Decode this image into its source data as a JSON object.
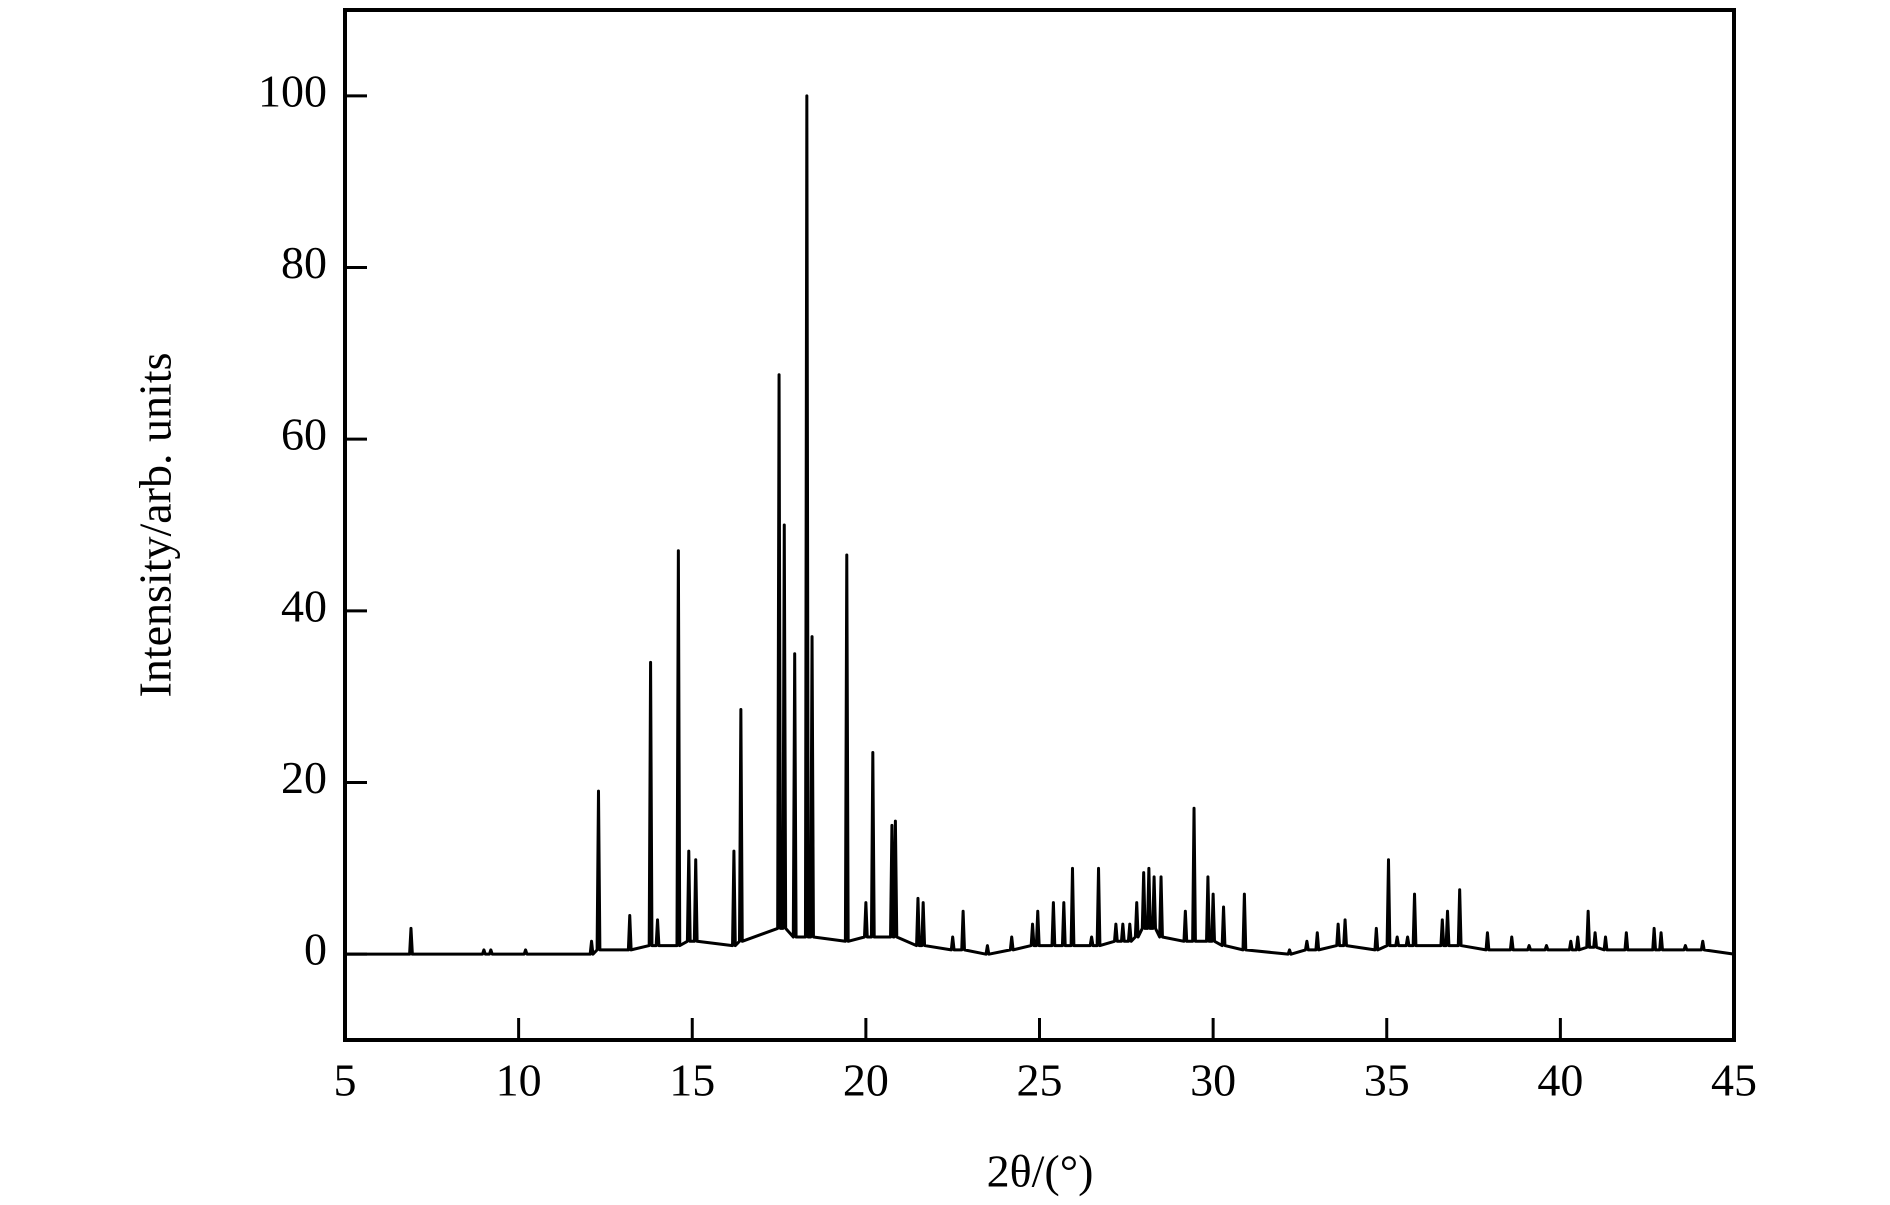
{
  "chart_data": {
    "type": "line",
    "xlabel": "2θ/(°)",
    "ylabel": "Intensity/arb. units",
    "color": "#000000",
    "xlim": [
      5,
      45
    ],
    "xticks": [
      5,
      10,
      15,
      20,
      25,
      30,
      35,
      40,
      45
    ],
    "ylim": [
      -10,
      110
    ],
    "yticks": [
      0,
      20,
      40,
      60,
      80,
      100
    ],
    "x": [
      5,
      6.86,
      6.9,
      6.94,
      8.96,
      9.0,
      9.04,
      9.16,
      9.2,
      9.24,
      10.16,
      10.2,
      10.24,
      12.06,
      12.1,
      12.14,
      12.26,
      12.3,
      12.34,
      13.16,
      13.2,
      13.24,
      13.76,
      13.8,
      13.84,
      13.96,
      14.0,
      14.04,
      14.56,
      14.6,
      14.64,
      14.86,
      14.9,
      14.94,
      15.06,
      15.1,
      15.14,
      16.16,
      16.2,
      16.24,
      16.36,
      16.4,
      16.44,
      17.46,
      17.5,
      17.54,
      17.61,
      17.65,
      17.69,
      17.91,
      17.95,
      17.99,
      18.26,
      18.3,
      18.34,
      18.41,
      18.45,
      18.49,
      19.41,
      19.45,
      19.49,
      19.96,
      20.0,
      20.04,
      20.16,
      20.2,
      20.24,
      20.71,
      20.75,
      20.79,
      20.81,
      20.85,
      20.89,
      21.46,
      21.5,
      21.54,
      21.61,
      21.65,
      21.69,
      22.46,
      22.5,
      22.54,
      22.76,
      22.8,
      22.84,
      23.46,
      23.5,
      23.54,
      24.16,
      24.2,
      24.24,
      24.76,
      24.8,
      24.84,
      24.91,
      24.95,
      24.99,
      25.36,
      25.4,
      25.44,
      25.66,
      25.7,
      25.74,
      25.91,
      25.95,
      25.99,
      26.46,
      26.5,
      26.54,
      26.66,
      26.7,
      26.74,
      27.16,
      27.2,
      27.24,
      27.36,
      27.4,
      27.44,
      27.56,
      27.6,
      27.64,
      27.76,
      27.8,
      27.84,
      27.96,
      28.0,
      28.04,
      28.11,
      28.15,
      28.19,
      28.26,
      28.3,
      28.34,
      28.46,
      28.5,
      28.54,
      29.16,
      29.2,
      29.24,
      29.41,
      29.45,
      29.49,
      29.81,
      29.85,
      29.89,
      29.96,
      30.0,
      30.04,
      30.26,
      30.3,
      30.34,
      30.86,
      30.9,
      30.94,
      32.16,
      32.2,
      32.24,
      32.66,
      32.7,
      32.74,
      32.96,
      33.0,
      33.04,
      33.56,
      33.6,
      33.64,
      33.76,
      33.8,
      33.84,
      34.66,
      34.7,
      34.74,
      35.01,
      35.05,
      35.09,
      35.26,
      35.3,
      35.34,
      35.56,
      35.6,
      35.64,
      35.76,
      35.8,
      35.84,
      36.56,
      36.6,
      36.64,
      36.71,
      36.75,
      36.79,
      37.06,
      37.1,
      37.14,
      37.86,
      37.9,
      37.94,
      38.56,
      38.6,
      38.64,
      39.06,
      39.1,
      39.14,
      39.56,
      39.6,
      39.64,
      40.26,
      40.3,
      40.34,
      40.46,
      40.5,
      40.54,
      40.76,
      40.8,
      40.84,
      40.96,
      41.0,
      41.04,
      41.26,
      41.3,
      41.34,
      41.86,
      41.9,
      41.94,
      42.66,
      42.7,
      42.74,
      42.86,
      42.9,
      42.94,
      43.56,
      43.6,
      43.64,
      44.06,
      44.1,
      44.14,
      45
    ],
    "values": [
      0,
      0,
      3,
      0,
      0,
      0.5,
      0,
      0,
      0.5,
      0,
      0,
      0.5,
      0,
      0,
      1.5,
      0,
      0.5,
      19,
      0.5,
      0.5,
      4.5,
      0.5,
      1,
      34,
      1,
      1,
      4,
      1,
      1,
      47,
      1,
      1.5,
      12,
      1.5,
      1.5,
      11,
      1.5,
      1,
      12,
      1,
      1.5,
      28.5,
      1.5,
      3,
      67.5,
      3,
      3,
      50,
      3,
      2,
      35,
      2,
      2,
      100,
      2,
      2,
      37,
      2,
      1.5,
      46.5,
      1.5,
      2,
      6,
      2,
      2,
      23.5,
      2,
      2,
      15,
      2,
      2,
      15.5,
      2,
      1,
      6.5,
      1,
      1,
      6,
      1,
      0.5,
      2,
      0.5,
      0.5,
      5,
      0.5,
      0,
      1,
      0,
      0.5,
      2,
      0.5,
      1,
      3.5,
      1,
      1,
      5,
      1,
      1,
      6,
      1,
      1,
      6,
      1,
      1,
      10,
      1,
      1,
      2,
      1,
      1,
      10,
      1,
      1.5,
      3.5,
      1.5,
      1.5,
      3.5,
      1.5,
      1.5,
      3.5,
      1.5,
      2,
      6,
      2,
      3,
      9.5,
      3,
      3,
      10,
      3,
      3,
      9,
      3,
      2,
      9,
      2,
      1.5,
      5,
      1.5,
      1.5,
      17,
      1.5,
      1.5,
      9,
      1.5,
      1.5,
      7,
      1.5,
      1,
      5.5,
      1,
      0.5,
      7,
      0.5,
      0,
      0.5,
      0,
      0.5,
      1.5,
      0.5,
      0.5,
      2.5,
      0.5,
      1,
      3.5,
      1,
      1,
      4,
      1,
      0.5,
      3,
      0.5,
      1,
      11,
      1,
      1,
      2,
      1,
      1,
      2,
      1,
      1,
      7,
      1,
      1,
      4,
      1,
      1,
      5,
      1,
      1,
      7.5,
      1,
      0.5,
      2.5,
      0.5,
      0.5,
      2,
      0.5,
      0.5,
      1,
      0.5,
      0.5,
      1,
      0.5,
      0.5,
      1.5,
      0.5,
      0.5,
      2,
      0.5,
      0.8,
      5,
      0.8,
      0.8,
      2.5,
      0.8,
      0.5,
      2,
      0.5,
      0.5,
      2.5,
      0.5,
      0.5,
      3,
      0.5,
      0.5,
      2.5,
      0.5,
      0.5,
      1,
      0.5,
      0.5,
      1.5,
      0.5,
      0
    ]
  }
}
